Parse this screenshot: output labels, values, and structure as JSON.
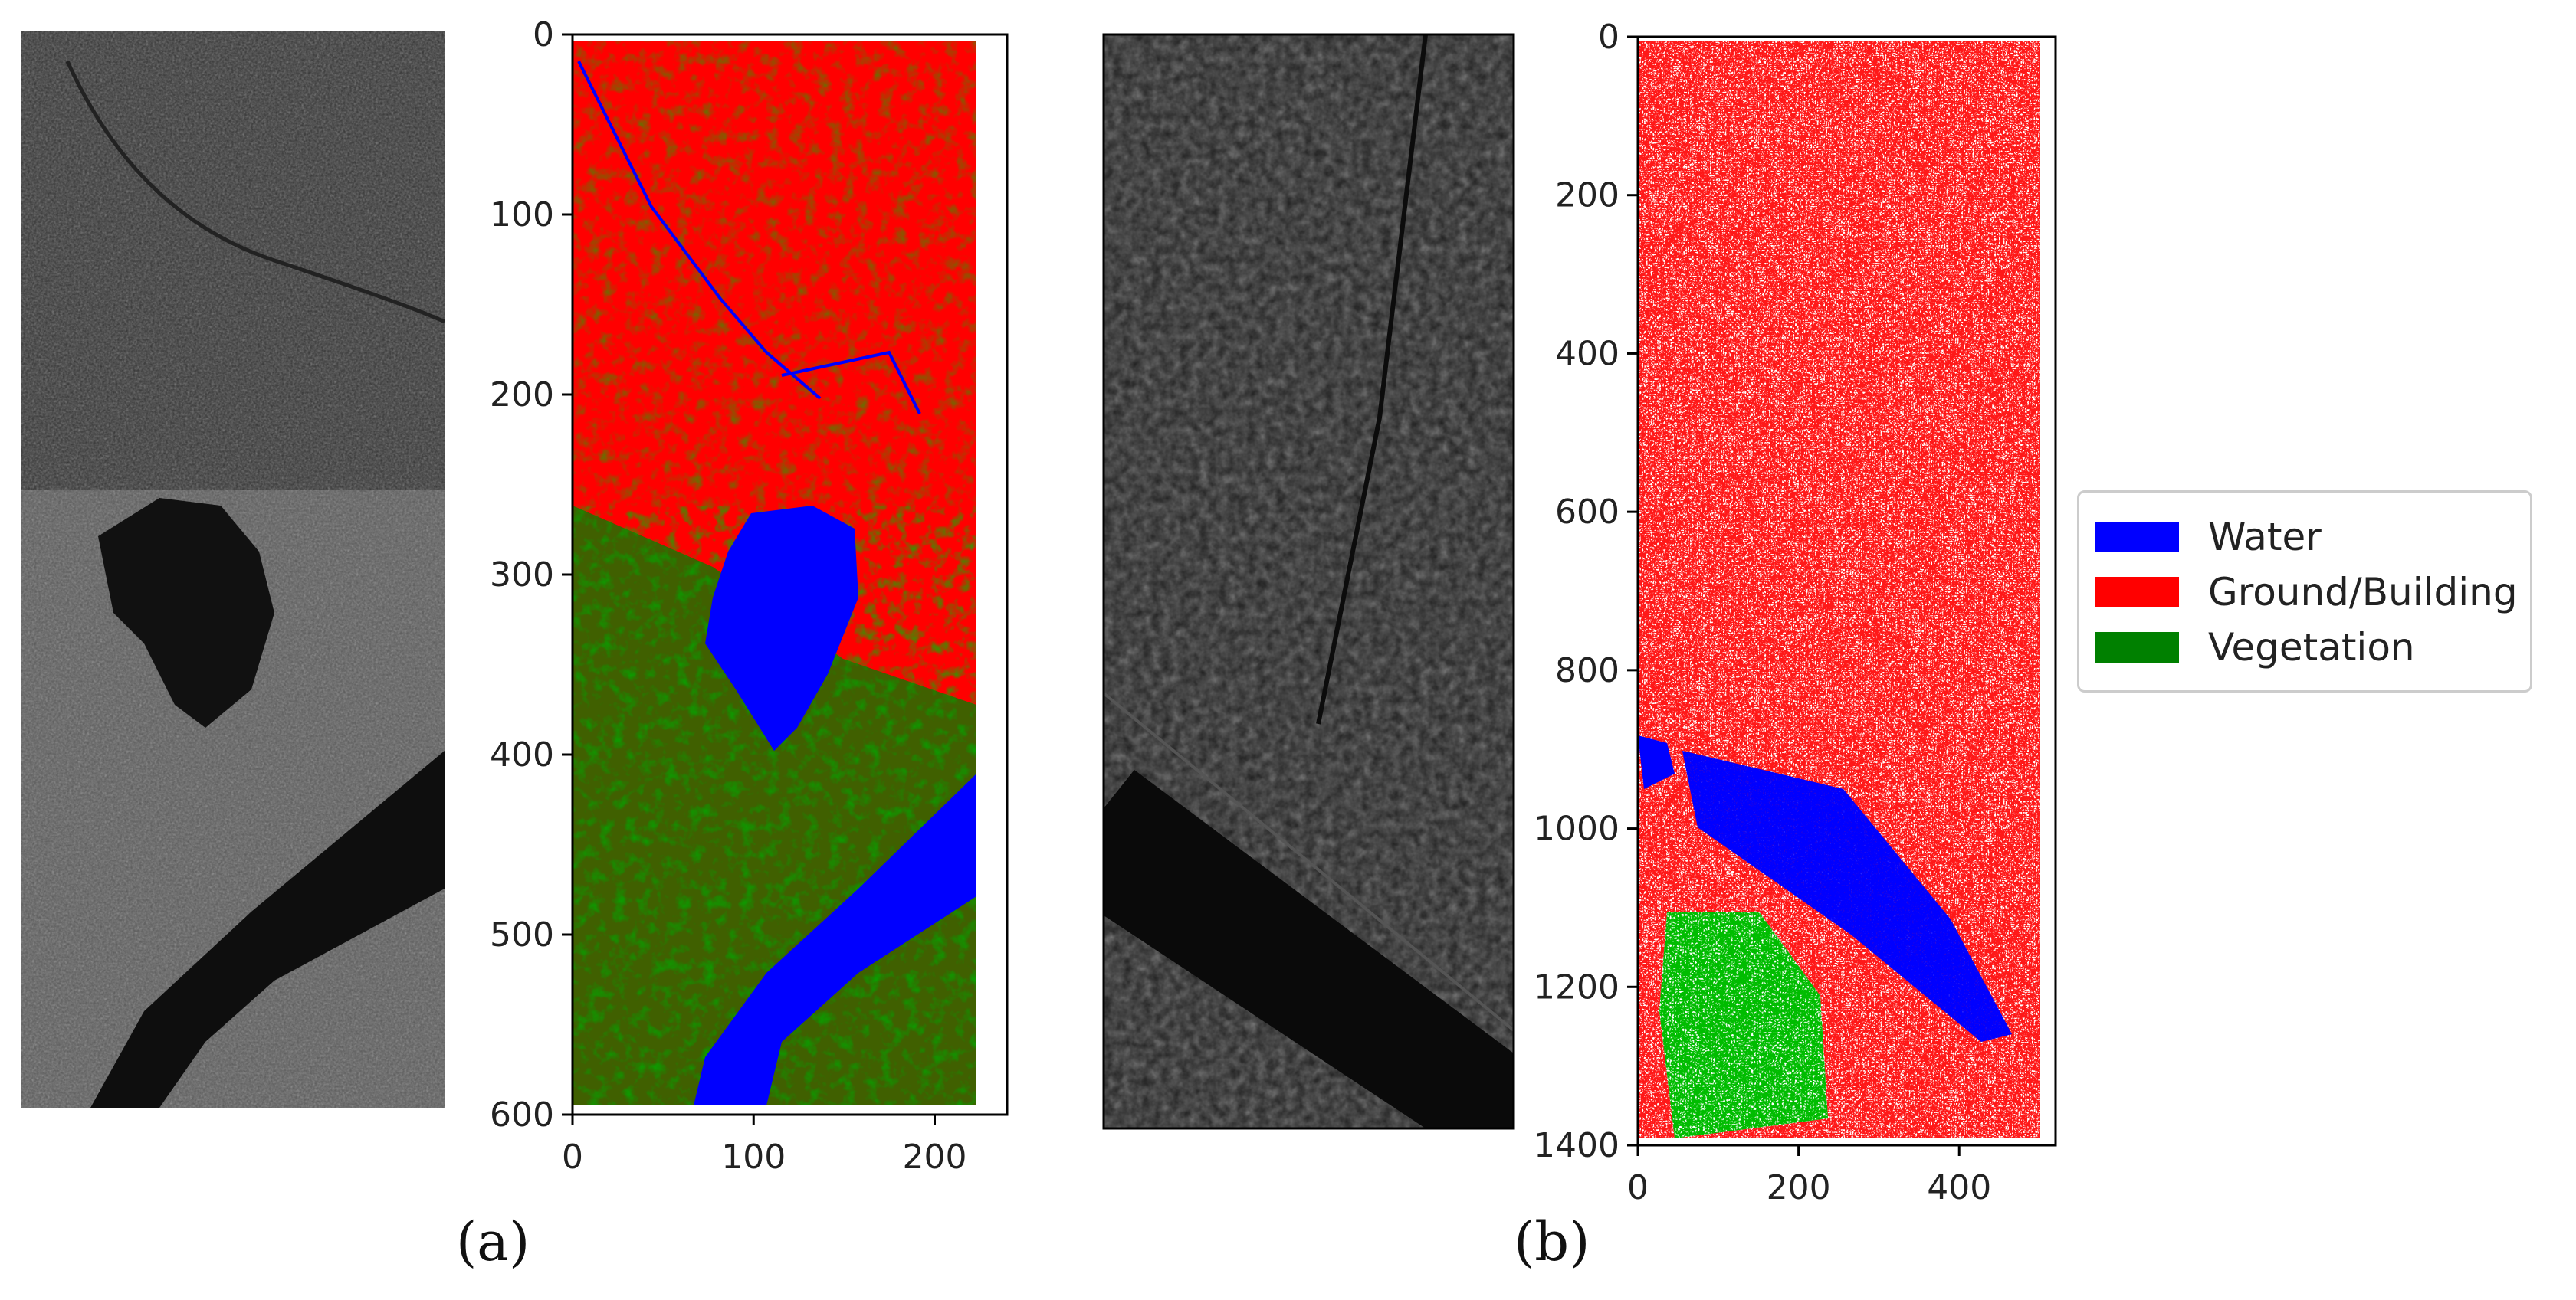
{
  "captions": {
    "a": "(a)",
    "b": "(b)"
  },
  "legend": [
    {
      "label": "Water",
      "color": "#0000ff"
    },
    {
      "label": "Ground/Building",
      "color": "#ff0000"
    },
    {
      "label": "Vegetation",
      "color": "#008000"
    }
  ],
  "colors": {
    "water": "#0000ff",
    "ground": "#ff0000",
    "vegetation": "#008000",
    "axis": "#000000"
  },
  "chart_data": [
    {
      "type": "heatmap",
      "title": "",
      "xlabel": "",
      "ylabel": "",
      "xlim": [
        0,
        240
      ],
      "ylim": [
        600,
        0
      ],
      "x_ticks": [
        "0",
        "100",
        "200"
      ],
      "x_tick_values": [
        0,
        100,
        200
      ],
      "y_ticks": [
        "0",
        "100",
        "200",
        "300",
        "400",
        "500",
        "600"
      ],
      "y_tick_values": [
        0,
        100,
        200,
        300,
        400,
        500,
        600
      ],
      "classes": [
        "Water",
        "Ground/Building",
        "Vegetation"
      ],
      "description_regions": {
        "water_lake_center": [
          110,
          330
        ],
        "river_band": "lower-right diagonal band"
      }
    },
    {
      "type": "heatmap",
      "title": "",
      "xlabel": "",
      "ylabel": "",
      "xlim": [
        0,
        520
      ],
      "ylim": [
        1400,
        0
      ],
      "x_ticks": [
        "0",
        "200",
        "400"
      ],
      "x_tick_values": [
        0,
        200,
        400
      ],
      "y_ticks": [
        "0",
        "200",
        "400",
        "600",
        "800",
        "1000",
        "1200",
        "1400"
      ],
      "y_tick_values": [
        0,
        200,
        400,
        600,
        800,
        1000,
        1200,
        1400
      ],
      "classes": [
        "Water",
        "Ground/Building",
        "Vegetation"
      ]
    }
  ]
}
